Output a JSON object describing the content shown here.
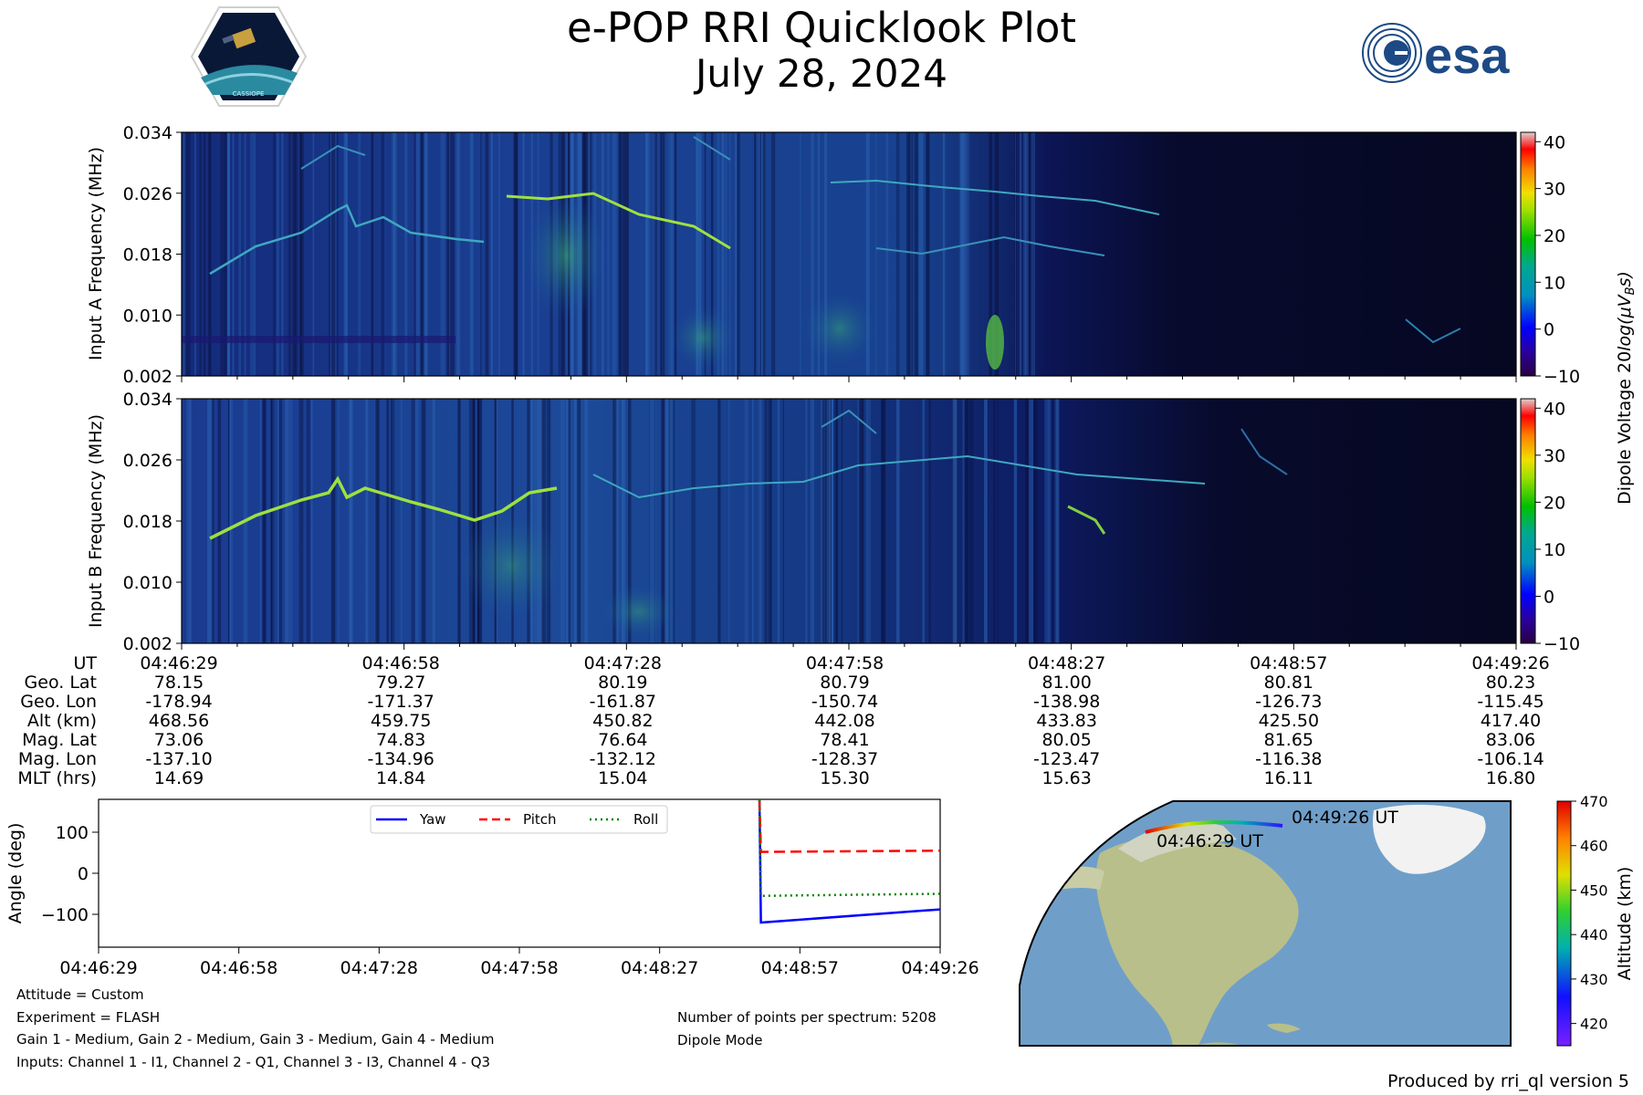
{
  "header": {
    "title": "e-POP RRI Quicklook Plot",
    "date": "July 28, 2024",
    "esa_logo_text": "esa",
    "cassiope_logo_text": "CASSIOPE"
  },
  "spectrograms": [
    {
      "ylabel": "Input A Frequency (MHz)"
    },
    {
      "ylabel": "Input B Frequency (MHz)"
    }
  ],
  "spectrogram_yticks": [
    "0.002",
    "0.010",
    "0.018",
    "0.026",
    "0.034"
  ],
  "colorbar": {
    "label_main": "Dipole Voltage 20",
    "label_italic": "log(μV",
    "label_sub": "B",
    "label_end": "s)",
    "ticks": [
      "−10",
      "0",
      "10",
      "20",
      "30",
      "40"
    ]
  },
  "ephemeris": {
    "row_labels": [
      "UT",
      "Geo. Lat",
      "Geo. Lon",
      "Alt (km)",
      "Mag. Lat",
      "Mag. Lon",
      "MLT (hrs)"
    ],
    "columns": [
      [
        "04:46:29",
        "78.15",
        "-178.94",
        "468.56",
        "73.06",
        "-137.10",
        "14.69"
      ],
      [
        "04:46:58",
        "79.27",
        "-171.37",
        "459.75",
        "74.83",
        "-134.96",
        "14.84"
      ],
      [
        "04:47:28",
        "80.19",
        "-161.87",
        "450.82",
        "76.64",
        "-132.12",
        "15.04"
      ],
      [
        "04:47:58",
        "80.79",
        "-150.74",
        "442.08",
        "78.41",
        "-128.37",
        "15.30"
      ],
      [
        "04:48:27",
        "81.00",
        "-138.98",
        "433.83",
        "80.05",
        "-123.47",
        "15.63"
      ],
      [
        "04:48:57",
        "80.81",
        "-126.73",
        "425.50",
        "81.65",
        "-116.38",
        "16.11"
      ],
      [
        "04:49:26",
        "80.23",
        "-115.45",
        "417.40",
        "83.06",
        "-106.14",
        "16.80"
      ]
    ]
  },
  "attitude_legend": [
    "Yaw",
    "Pitch",
    "Roll"
  ],
  "map": {
    "start_label": "04:46:29 UT",
    "end_label": "04:49:26 UT",
    "altitude_label": "Altitude (km)",
    "altitude_ticks": [
      "420",
      "430",
      "440",
      "450",
      "460",
      "470"
    ]
  },
  "notes_left": [
    "Attitude = Custom",
    "Experiment = FLASH",
    "Gain 1 - Medium, Gain 2 - Medium, Gain 3 - Medium, Gain 4 - Medium",
    "Inputs: Channel 1 - I1, Channel 2 - Q1, Channel 3 - I3, Channel 4 - Q3"
  ],
  "notes_right": [
    "Number of points per spectrum: 5208",
    "Dipole Mode"
  ],
  "footer": "Produced by rri_ql version 5",
  "colors": {
    "yaw": "#0000ff",
    "pitch": "#ff0000",
    "roll": "#008000",
    "spectrogram_bg": "#0b0f3a",
    "ocean": "#6f9fc9",
    "land": "#b9bf8a",
    "ice": "#f2f2f2"
  },
  "chart_data": [
    {
      "type": "line",
      "title": "",
      "xlabel": "",
      "ylabel": "Angle (deg)",
      "x_ticks": [
        "04:46:29",
        "04:46:58",
        "04:47:28",
        "04:47:58",
        "04:48:27",
        "04:48:57",
        "04:49:26"
      ],
      "y_ticks": [
        "−100",
        "0",
        "100"
      ],
      "ylim": [
        -180,
        180
      ],
      "x_unit": "seconds after 04:46:29 UT",
      "xlim": [
        0,
        177
      ],
      "legend_position": "top-center",
      "series": [
        {
          "name": "Yaw",
          "style": "solid",
          "x": [
            139,
            139.3,
            177
          ],
          "y": [
            180,
            -120,
            -88
          ]
        },
        {
          "name": "Pitch",
          "style": "dashed",
          "x": [
            139,
            139.3,
            177
          ],
          "y": [
            180,
            52,
            55
          ]
        },
        {
          "name": "Roll",
          "style": "dotted",
          "x": [
            139,
            139.3,
            177
          ],
          "y": [
            180,
            -55,
            -50
          ]
        }
      ]
    },
    {
      "type": "heatmap",
      "title": "",
      "ylabel": "Input A Frequency (MHz)",
      "y_range": [
        0.002,
        0.034
      ],
      "x_ticks": [
        "04:46:29",
        "04:46:58",
        "04:47:28",
        "04:47:58",
        "04:48:27",
        "04:48:57",
        "04:49:26"
      ],
      "color_range": [
        -10,
        42
      ]
    },
    {
      "type": "heatmap",
      "title": "",
      "ylabel": "Input B Frequency (MHz)",
      "y_range": [
        0.002,
        0.034
      ],
      "x_ticks": [
        "04:46:29",
        "04:46:58",
        "04:47:28",
        "04:47:58",
        "04:48:27",
        "04:48:57",
        "04:49:26"
      ],
      "color_range": [
        -10,
        42
      ]
    }
  ]
}
